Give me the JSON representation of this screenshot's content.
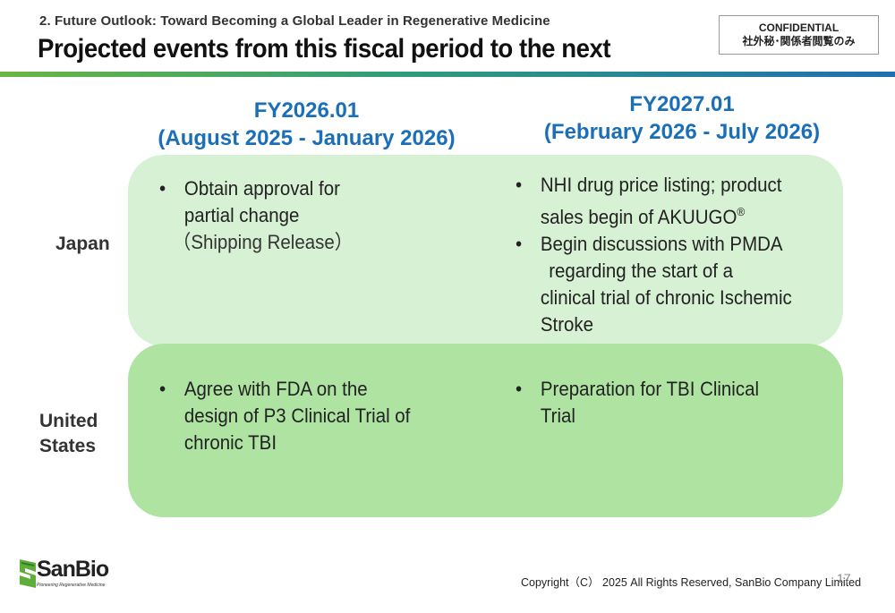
{
  "header": {
    "subtitle": "2. Future Outlook: Toward Becoming a Global Leader in Regenerative Medicine",
    "title": "Projected events from this fiscal period to the next",
    "confidential_line1": "CONFIDENTIAL",
    "confidential_line2": "社外秘･関係者閲覧のみ"
  },
  "columns": [
    {
      "fy": "FY2026.01",
      "period": "(August 2025 - January 2026)"
    },
    {
      "fy": "FY2027.01",
      "period": "(February 2026 - July 2026)"
    }
  ],
  "rows": [
    {
      "label": "Japan"
    },
    {
      "label_line1": "United",
      "label_line2": "States"
    }
  ],
  "cells": {
    "japan_fy2026": {
      "bullet": "•",
      "line1": "Obtain approval for",
      "line2": "partial change",
      "line3": "（Shipping Release）"
    },
    "japan_fy2027": {
      "bullet": "•",
      "item1_line1": "NHI drug price listing; product",
      "item1_line2": "sales begin of AKUUGO",
      "item1_reg": "®",
      "item2_line1": "Begin discussions   with PMDA",
      "item2_line2": "regarding the start of a",
      "item2_line3": "clinical trial of chronic Ischemic",
      "item2_line4": "Stroke"
    },
    "us_fy2026": {
      "bullet": "•",
      "line1": "Agree with FDA on the",
      "line2": "design of P3 Clinical Trial of",
      "line3": "chronic TBI"
    },
    "us_fy2027": {
      "bullet": "•",
      "line1": "Preparation for TBI Clinical",
      "line2": "Trial"
    }
  },
  "footer": {
    "logo_text": "SanBio",
    "logo_tagline": "Pioneering Regenerative Medicine",
    "copyright": "Copyright（C） 2025 All Rights Reserved, SanBio Company Limited",
    "page_number": "17"
  },
  "colors": {
    "accent_blue": "#1a6fb8",
    "japan_panel": "#d7f1d4",
    "us_panel": "#aee3a2",
    "brand_green": "#5fae3a"
  }
}
